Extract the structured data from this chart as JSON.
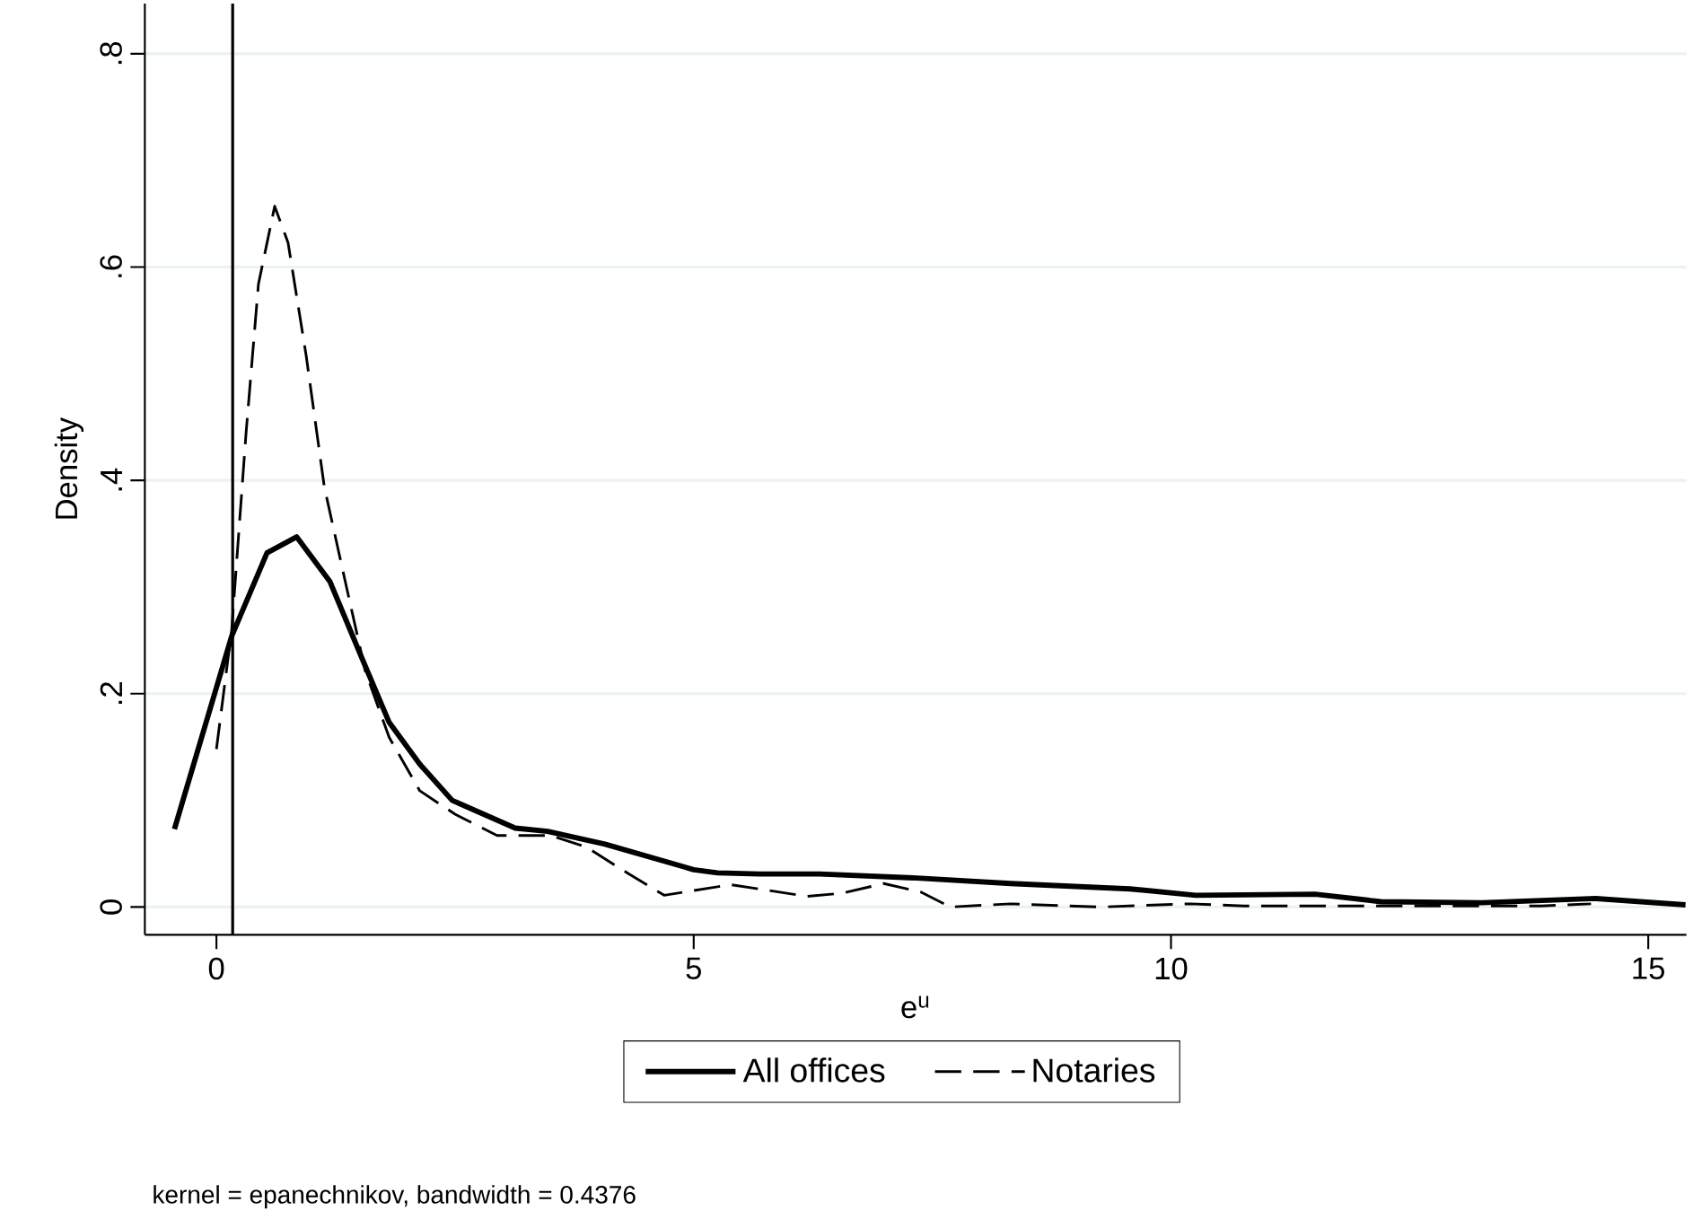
{
  "chart_data": {
    "type": "line",
    "xlabel": "e$^{u}$",
    "ylabel": "Density",
    "xlim": [
      -0.75,
      15.4
    ],
    "ylim": [
      -0.026,
      0.847
    ],
    "xticks": [
      0,
      5,
      10,
      15
    ],
    "yticks": [
      {
        "value": 0,
        "label": "0"
      },
      {
        "value": 0.2,
        "label": ".2"
      },
      {
        "value": 0.4,
        "label": ".4"
      },
      {
        "value": 0.6,
        "label": ".6"
      },
      {
        "value": 0.8,
        "label": ".8"
      }
    ],
    "grid": "y",
    "legend": "bottom",
    "ref_lines": [
      {
        "axis": "x",
        "value": 0.17,
        "color": "#000000"
      }
    ],
    "annotations": [
      "kernel = epanechnikov, bandwidth = 0.4376"
    ],
    "series": [
      {
        "name": "All offices",
        "color": "#000000",
        "line_style": "solid",
        "x": [
          -0.44,
          0.16,
          0.53,
          0.84,
          1.19,
          1.53,
          1.81,
          2.13,
          2.47,
          3.13,
          3.47,
          4.07,
          5.0,
          5.25,
          5.69,
          6.32,
          7.38,
          8.32,
          9.57,
          10.26,
          11.51,
          12.2,
          13.26,
          14.45,
          15.39
        ],
        "values": [
          0.073,
          0.254,
          0.332,
          0.347,
          0.305,
          0.232,
          0.173,
          0.134,
          0.1,
          0.074,
          0.071,
          0.059,
          0.035,
          0.032,
          0.031,
          0.031,
          0.027,
          0.022,
          0.017,
          0.011,
          0.012,
          0.005,
          0.004,
          0.008,
          0.002
        ]
      },
      {
        "name": "Notaries",
        "color": "#000000",
        "line_style": "dashed",
        "x": [
          0.0,
          0.16,
          0.31,
          0.44,
          0.61,
          0.75,
          0.94,
          1.13,
          1.35,
          1.56,
          1.81,
          2.13,
          2.5,
          2.94,
          3.5,
          3.88,
          4.32,
          4.69,
          5.25,
          5.38,
          6.19,
          6.56,
          6.99,
          7.38,
          7.69,
          8.32,
          9.26,
          10.2,
          10.76,
          13.88,
          14.4
        ],
        "values": [
          0.148,
          0.26,
          0.444,
          0.584,
          0.657,
          0.623,
          0.517,
          0.394,
          0.305,
          0.221,
          0.159,
          0.109,
          0.087,
          0.067,
          0.067,
          0.056,
          0.031,
          0.011,
          0.019,
          0.021,
          0.01,
          0.013,
          0.022,
          0.014,
          0.0,
          0.003,
          0.0,
          0.003,
          0.001,
          0.001,
          0.003
        ]
      }
    ]
  }
}
